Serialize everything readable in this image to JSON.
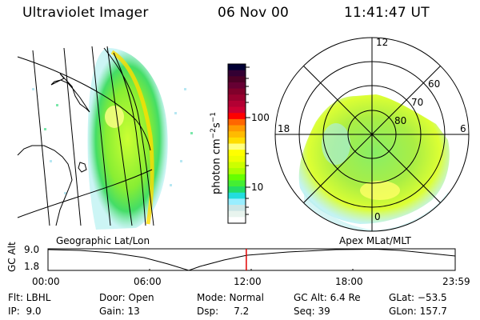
{
  "header": {
    "instrument": "Ultraviolet Imager",
    "date": "06 Nov 00",
    "time": "11:41:47 UT"
  },
  "geo_panel": {
    "label": "Geographic Lat/Lon"
  },
  "polar_panel": {
    "label": "Apex MLat/MLT",
    "mlt_labels": [
      "12",
      "18",
      "6",
      "0"
    ],
    "lat_labels": [
      "60",
      "70",
      "80"
    ]
  },
  "colorbar": {
    "unit_label": "photon cm",
    "unit_exp1": "−2",
    "unit_mid": "s",
    "unit_exp2": "−1",
    "ticks": [
      "100",
      "10"
    ],
    "colors": [
      "#000033",
      "#330033",
      "#4d0026",
      "#660033",
      "#80002a",
      "#99002e",
      "#b30033",
      "#cc0033",
      "#ff0000",
      "#ff6600",
      "#ff9900",
      "#ffbb00",
      "#ffdd00",
      "#ffff80",
      "#ffff00",
      "#eeff00",
      "#ccff00",
      "#aaff00",
      "#66ff00",
      "#44ee33",
      "#22dd66",
      "#22dddd",
      "#99eeff",
      "#cce6e6",
      "#e8f4ee",
      "#ffffff"
    ]
  },
  "altitude_strip": {
    "ylabel": "GC Alt",
    "ymax": "9.0",
    "ymin": "1.8",
    "xticks": [
      "00:00",
      "06:00",
      "12:00",
      "18:00",
      "23:59"
    ],
    "current_time_fraction": 0.487,
    "marker_color": "#e00000"
  },
  "info": {
    "row1": [
      "Flt: LBHL",
      "Door: Open",
      "Mode: Normal",
      "GC Alt: 6.4 Re",
      "GLat: −53.5"
    ],
    "row2": [
      "IP:  9.0",
      "Gain: 13",
      "Dsp:     7.2",
      "Seq: 39",
      "GLon: 157.7"
    ]
  }
}
